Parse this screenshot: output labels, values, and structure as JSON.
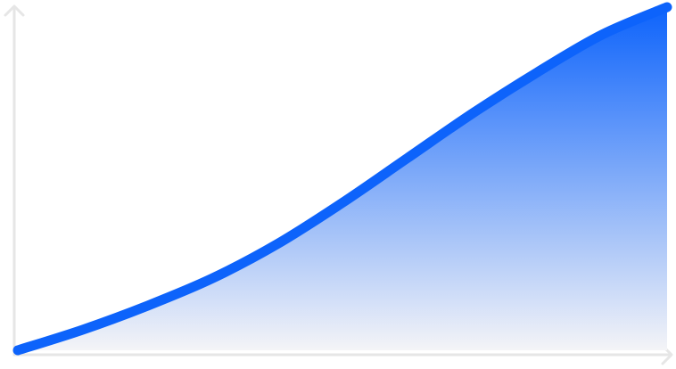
{
  "chart_data": {
    "type": "area",
    "title": "",
    "xlabel": "",
    "ylabel": "",
    "x": [
      0,
      0.1,
      0.2,
      0.3,
      0.4,
      0.5,
      0.6,
      0.7,
      0.8,
      0.9,
      1.0
    ],
    "y": [
      0.0,
      0.06,
      0.13,
      0.21,
      0.31,
      0.43,
      0.56,
      0.69,
      0.81,
      0.92,
      1.0
    ],
    "xlim": [
      0,
      1
    ],
    "ylim": [
      0,
      1
    ],
    "grid": false,
    "legend": "none",
    "axes": "arrow-axes",
    "colors": {
      "line": "#0d63fb",
      "fill_top": "#0d63fb",
      "fill_bottom": "#f4f4f7",
      "axis": "#e6e6e6"
    }
  }
}
